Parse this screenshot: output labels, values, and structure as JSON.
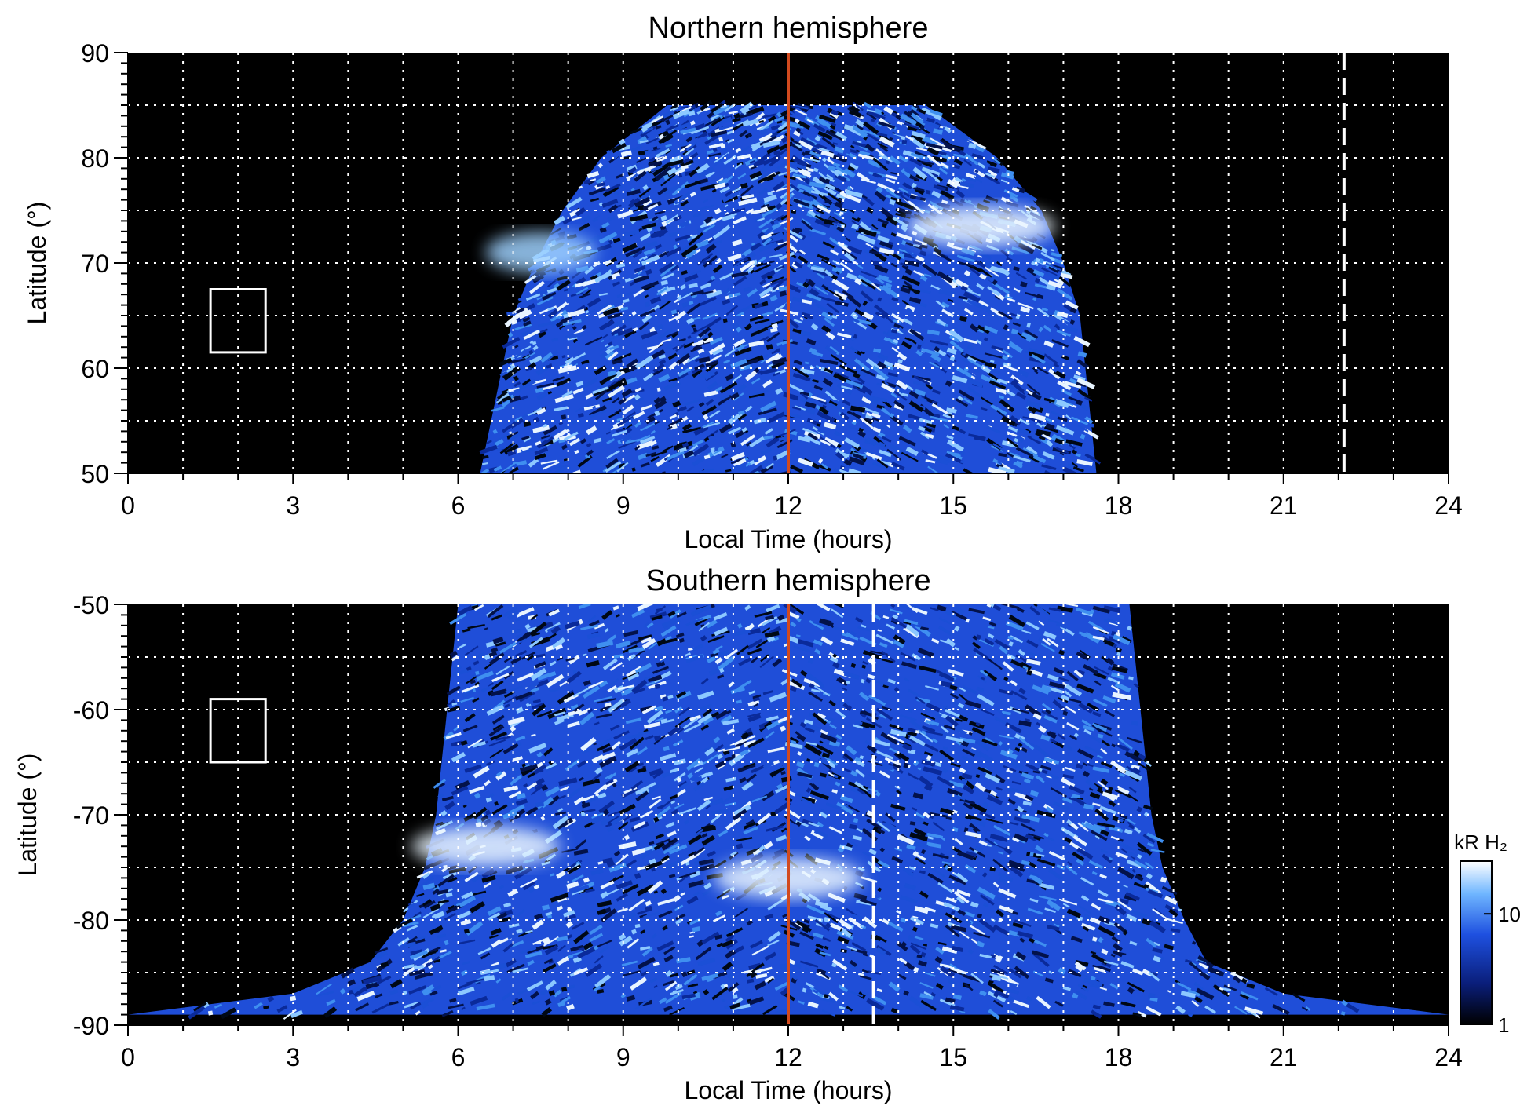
{
  "chart_data": [
    {
      "type": "heatmap",
      "title": "Northern hemisphere",
      "xlabel": "Local Time (hours)",
      "ylabel": "Latitude (°)",
      "xlim": [
        0,
        24
      ],
      "ylim": [
        50,
        90
      ],
      "xticks": [
        0,
        3,
        6,
        9,
        12,
        15,
        18,
        21,
        24
      ],
      "yticks": [
        50,
        60,
        70,
        80,
        90
      ],
      "grid": true,
      "noon_marker_x": 12,
      "dashed_marker_x": 22.1,
      "reference_box": {
        "x": [
          1.5,
          2.5
        ],
        "y": [
          61.5,
          67.5
        ]
      },
      "emission_region": {
        "lat_rows": [
          50,
          55,
          60,
          65,
          70,
          75,
          80,
          85
        ],
        "lt_start": [
          6.4,
          6.6,
          6.8,
          7.0,
          7.4,
          7.9,
          8.6,
          9.8
        ],
        "lt_end": [
          17.6,
          17.5,
          17.4,
          17.3,
          17.0,
          16.6,
          15.8,
          14.5
        ],
        "bright_zones": [
          {
            "lt": 15.5,
            "lat": 73.5,
            "level": "high"
          },
          {
            "lt": 7.5,
            "lat": 71,
            "level": "medium"
          }
        ]
      },
      "colorbar": null
    },
    {
      "type": "heatmap",
      "title": "Southern hemisphere",
      "xlabel": "Local Time (hours)",
      "ylabel": "Latitude (°)",
      "xlim": [
        0,
        24
      ],
      "ylim": [
        -90,
        -50
      ],
      "xticks": [
        0,
        3,
        6,
        9,
        12,
        15,
        18,
        21,
        24
      ],
      "yticks": [
        -90,
        -80,
        -70,
        -60,
        -50
      ],
      "grid": true,
      "noon_marker_x": 12,
      "dashed_marker_x": 13.55,
      "reference_box": {
        "x": [
          1.5,
          2.5
        ],
        "y": [
          -65,
          -59
        ]
      },
      "emission_region": {
        "lat_rows": [
          -50,
          -55,
          -60,
          -65,
          -70,
          -75,
          -80,
          -84,
          -87,
          -89
        ],
        "lt_start": [
          6.0,
          5.9,
          5.8,
          5.7,
          5.6,
          5.4,
          5.0,
          4.4,
          3.0,
          0
        ],
        "lt_end": [
          18.2,
          18.3,
          18.4,
          18.5,
          18.6,
          18.8,
          19.2,
          19.6,
          21.0,
          24
        ],
        "bright_zones": [
          {
            "lt": 6.5,
            "lat": -73,
            "level": "high"
          },
          {
            "lt": 12,
            "lat": -76,
            "level": "high"
          }
        ]
      },
      "colorbar": {
        "label": "kR H₂",
        "scale": "log",
        "range": [
          1,
          30
        ],
        "ticks": [
          1,
          10
        ],
        "tick_labels": [
          "1",
          "10"
        ],
        "colors": [
          "#000000",
          "#0a1e7a",
          "#1e50e0",
          "#6fb6ff",
          "#ffffff"
        ]
      }
    }
  ]
}
